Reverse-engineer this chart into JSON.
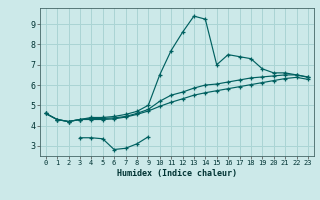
{
  "xlabel": "Humidex (Indice chaleur)",
  "xlim": [
    -0.5,
    23.5
  ],
  "ylim": [
    2.5,
    9.8
  ],
  "xticks": [
    0,
    1,
    2,
    3,
    4,
    5,
    6,
    7,
    8,
    9,
    10,
    11,
    12,
    13,
    14,
    15,
    16,
    17,
    18,
    19,
    20,
    21,
    22,
    23
  ],
  "yticks": [
    3,
    4,
    5,
    6,
    7,
    8,
    9
  ],
  "background_color": "#cce9e9",
  "grid_color": "#aad4d4",
  "line_color": "#006060",
  "line1_x": [
    0,
    1,
    2,
    3,
    4,
    5,
    6,
    7,
    8,
    9,
    10,
    11,
    12,
    13,
    14,
    15,
    16,
    17,
    18,
    19,
    20,
    21,
    22,
    23
  ],
  "line1_y": [
    4.6,
    4.3,
    4.2,
    4.3,
    4.4,
    4.4,
    4.45,
    4.55,
    4.7,
    5.0,
    6.5,
    7.7,
    8.6,
    9.4,
    9.25,
    7.0,
    7.5,
    7.4,
    7.3,
    6.8,
    6.6,
    6.6,
    6.5,
    6.4
  ],
  "line2_x": [
    0,
    1,
    2,
    3,
    4,
    5,
    6,
    7,
    8,
    9,
    10,
    11,
    12,
    13,
    14,
    15,
    16,
    17,
    18,
    19,
    20,
    21,
    22,
    23
  ],
  "line2_y": [
    4.6,
    4.3,
    4.2,
    4.3,
    4.35,
    4.35,
    4.38,
    4.45,
    4.6,
    4.8,
    5.2,
    5.5,
    5.65,
    5.85,
    6.0,
    6.05,
    6.15,
    6.25,
    6.35,
    6.4,
    6.45,
    6.5,
    6.5,
    6.38
  ],
  "line3_x": [
    0,
    1,
    2,
    3,
    4,
    5,
    6,
    7,
    8,
    9,
    10,
    11,
    12,
    13,
    14,
    15,
    16,
    17,
    18,
    19,
    20,
    21,
    22,
    23
  ],
  "line3_y": [
    4.6,
    4.3,
    4.2,
    4.3,
    4.3,
    4.3,
    4.33,
    4.42,
    4.55,
    4.72,
    4.95,
    5.15,
    5.32,
    5.5,
    5.62,
    5.72,
    5.82,
    5.92,
    6.02,
    6.12,
    6.22,
    6.32,
    6.38,
    6.28
  ],
  "line4_x": [
    3,
    4,
    5,
    6,
    7,
    8,
    9
  ],
  "line4_y": [
    3.4,
    3.4,
    3.35,
    2.82,
    2.88,
    3.1,
    3.45
  ]
}
